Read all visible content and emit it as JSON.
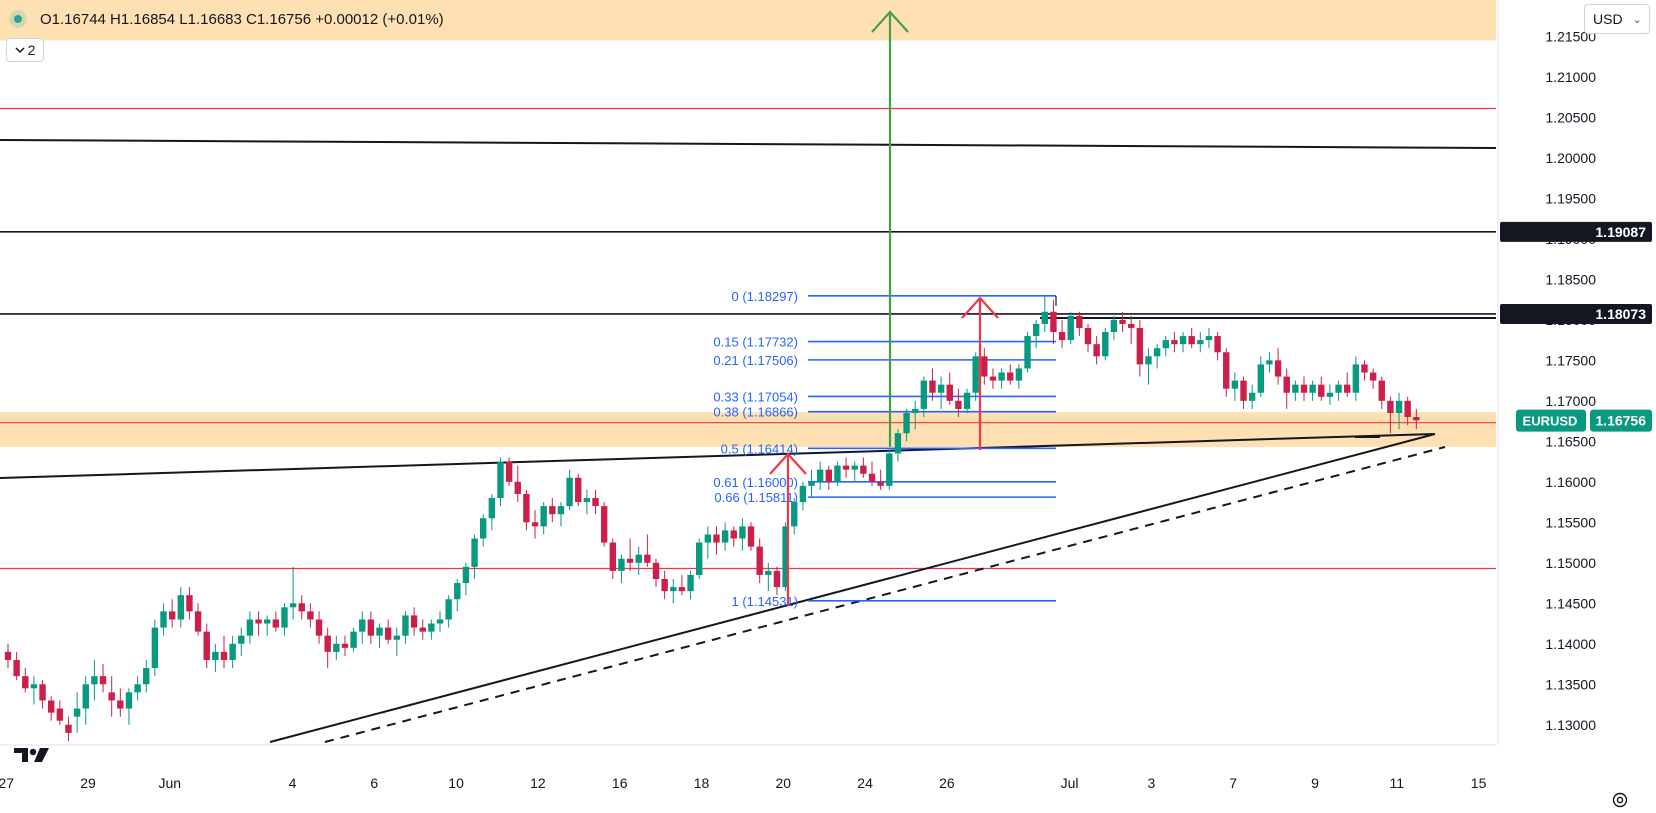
{
  "header": {
    "ohlc_text": "O1.16744 H1.16854 L1.16683 C1.16756 +0.00012 (+0.01%)",
    "collapse_label": "2",
    "currency": "USD"
  },
  "colors": {
    "up": "#089981",
    "down": "#cc1f4a",
    "fib": "#2962ff",
    "zone": "#ffe0b2",
    "green_arrow": "#43a047",
    "red": "#f23645",
    "text": "#131722"
  },
  "icons": {
    "status": "status-dot-icon",
    "collapse": "chevron-down-icon",
    "currency": "chevron-down-icon",
    "logo": "tradingview-logo-icon",
    "settings": "gear-icon"
  },
  "chart_data": {
    "type": "candlestick",
    "symbol": "EURUSD",
    "last_price": "1.16756",
    "y_range": [
      1.1275,
      1.2195
    ],
    "y_ticks": [
      "1.21500",
      "1.21000",
      "1.20500",
      "1.20000",
      "1.19500",
      "1.19000",
      "1.18500",
      "1.18000",
      "1.17500",
      "1.17000",
      "1.16500",
      "1.16000",
      "1.15500",
      "1.15000",
      "1.14500",
      "1.14000",
      "1.13500",
      "1.13000"
    ],
    "x_ticks": [
      {
        "label": "27",
        "bar": -1
      },
      {
        "label": "29",
        "bar": 1
      },
      {
        "label": "Jun",
        "bar": 3
      },
      {
        "label": "4",
        "bar": 6
      },
      {
        "label": "6",
        "bar": 8
      },
      {
        "label": "10",
        "bar": 10
      },
      {
        "label": "12",
        "bar": 12
      },
      {
        "label": "16",
        "bar": 14
      },
      {
        "label": "18",
        "bar": 16
      },
      {
        "label": "20",
        "bar": 18
      },
      {
        "label": "24",
        "bar": 20
      },
      {
        "label": "26",
        "bar": 22
      },
      {
        "label": "Jul",
        "bar": 25
      },
      {
        "label": "3",
        "bar": 27
      },
      {
        "label": "7",
        "bar": 29
      },
      {
        "label": "9",
        "bar": 31
      },
      {
        "label": "11",
        "bar": 33
      },
      {
        "label": "15",
        "bar": 35
      }
    ],
    "price_tags": [
      {
        "label": "1.19087",
        "value": 1.19087
      },
      {
        "label": "1.18073",
        "value": 1.18073
      }
    ],
    "fib_levels": [
      {
        "label": "0 (1.18297)",
        "value": 1.18297
      },
      {
        "label": "0.15 (1.17732)",
        "value": 1.17732
      },
      {
        "label": "0.21 (1.17506)",
        "value": 1.17506
      },
      {
        "label": "0.33 (1.17054)",
        "value": 1.17054
      },
      {
        "label": "0.38 (1.16866)",
        "value": 1.16866
      },
      {
        "label": "0.5 (1.16414)",
        "value": 1.16414
      },
      {
        "label": "0.61 (1.16000)",
        "value": 1.16
      },
      {
        "label": "0.66 (1.15811)",
        "value": 1.15811
      },
      {
        "label": "1 (1.14531)",
        "value": 1.14531
      }
    ],
    "horizontal_lines": [
      {
        "value": 1.2061,
        "color": "red"
      },
      {
        "value": 1.19087,
        "color": "black"
      },
      {
        "value": 1.18073,
        "color": "black"
      },
      {
        "value": 1.1493,
        "color": "red"
      },
      {
        "value": 1.1673,
        "color": "red"
      }
    ],
    "zones": [
      {
        "from": 1.2145,
        "to": 1.2195
      },
      {
        "from": 1.1643,
        "to": 1.1686
      }
    ],
    "candles": [
      [
        1.139,
        1.14,
        1.137,
        1.138
      ],
      [
        1.138,
        1.139,
        1.1355,
        1.136
      ],
      [
        1.136,
        1.137,
        1.134,
        1.1345
      ],
      [
        1.1345,
        1.136,
        1.1325,
        1.135
      ],
      [
        1.135,
        1.1355,
        1.132,
        1.133
      ],
      [
        1.133,
        1.1335,
        1.1305,
        1.1315
      ],
      [
        1.132,
        1.133,
        1.13,
        1.1305
      ],
      [
        1.13,
        1.131,
        1.128,
        1.129
      ],
      [
        1.131,
        1.134,
        1.129,
        1.132
      ],
      [
        1.132,
        1.136,
        1.13,
        1.135
      ],
      [
        1.135,
        1.138,
        1.133,
        1.136
      ],
      [
        1.136,
        1.1375,
        1.134,
        1.135
      ],
      [
        1.134,
        1.136,
        1.131,
        1.133
      ],
      [
        1.133,
        1.1345,
        1.131,
        1.132
      ],
      [
        1.132,
        1.1345,
        1.13,
        1.134
      ],
      [
        1.134,
        1.136,
        1.133,
        1.135
      ],
      [
        1.135,
        1.138,
        1.134,
        1.137
      ],
      [
        1.137,
        1.143,
        1.136,
        1.142
      ],
      [
        1.142,
        1.145,
        1.141,
        1.144
      ],
      [
        1.144,
        1.1455,
        1.142,
        1.143
      ],
      [
        1.143,
        1.147,
        1.142,
        1.146
      ],
      [
        1.146,
        1.147,
        1.143,
        1.144
      ],
      [
        1.144,
        1.145,
        1.141,
        1.1415
      ],
      [
        1.1415,
        1.1425,
        1.137,
        1.138
      ],
      [
        1.138,
        1.14,
        1.1365,
        1.139
      ],
      [
        1.139,
        1.141,
        1.137,
        1.138
      ],
      [
        1.138,
        1.141,
        1.137,
        1.14
      ],
      [
        1.14,
        1.142,
        1.1385,
        1.141
      ],
      [
        1.141,
        1.144,
        1.14,
        1.143
      ],
      [
        1.143,
        1.144,
        1.141,
        1.1425
      ],
      [
        1.1425,
        1.1435,
        1.141,
        1.143
      ],
      [
        1.143,
        1.144,
        1.1415,
        1.142
      ],
      [
        1.142,
        1.145,
        1.141,
        1.1445
      ],
      [
        1.1445,
        1.1495,
        1.143,
        1.145
      ],
      [
        1.145,
        1.146,
        1.143,
        1.144
      ],
      [
        1.144,
        1.145,
        1.142,
        1.143
      ],
      [
        1.143,
        1.144,
        1.14,
        1.141
      ],
      [
        1.141,
        1.142,
        1.137,
        1.139
      ],
      [
        1.139,
        1.141,
        1.138,
        1.14
      ],
      [
        1.14,
        1.141,
        1.1385,
        1.1395
      ],
      [
        1.1395,
        1.142,
        1.139,
        1.1415
      ],
      [
        1.1415,
        1.144,
        1.14,
        1.143
      ],
      [
        1.143,
        1.144,
        1.14,
        1.141
      ],
      [
        1.141,
        1.1425,
        1.1395,
        1.142
      ],
      [
        1.142,
        1.143,
        1.14,
        1.1405
      ],
      [
        1.1405,
        1.142,
        1.1385,
        1.141
      ],
      [
        1.141,
        1.144,
        1.14,
        1.1435
      ],
      [
        1.1435,
        1.1445,
        1.141,
        1.142
      ],
      [
        1.142,
        1.143,
        1.1405,
        1.1415
      ],
      [
        1.1415,
        1.143,
        1.1405,
        1.1425
      ],
      [
        1.1425,
        1.144,
        1.1415,
        1.143
      ],
      [
        1.143,
        1.146,
        1.142,
        1.1455
      ],
      [
        1.1455,
        1.148,
        1.144,
        1.1475
      ],
      [
        1.1475,
        1.15,
        1.146,
        1.1495
      ],
      [
        1.1495,
        1.1535,
        1.148,
        1.153
      ],
      [
        1.153,
        1.156,
        1.152,
        1.1555
      ],
      [
        1.1555,
        1.1585,
        1.154,
        1.158
      ],
      [
        1.158,
        1.163,
        1.157,
        1.1625
      ],
      [
        1.1625,
        1.163,
        1.1595,
        1.16
      ],
      [
        1.16,
        1.162,
        1.1575,
        1.1585
      ],
      [
        1.1585,
        1.159,
        1.154,
        1.155
      ],
      [
        1.155,
        1.1565,
        1.153,
        1.1545
      ],
      [
        1.1545,
        1.1575,
        1.1535,
        1.157
      ],
      [
        1.157,
        1.158,
        1.155,
        1.156
      ],
      [
        1.156,
        1.1575,
        1.1545,
        1.157
      ],
      [
        1.157,
        1.1615,
        1.1565,
        1.1605
      ],
      [
        1.1605,
        1.161,
        1.157,
        1.1575
      ],
      [
        1.1575,
        1.159,
        1.156,
        1.158
      ],
      [
        1.158,
        1.159,
        1.156,
        1.157
      ],
      [
        1.157,
        1.1575,
        1.152,
        1.1525
      ],
      [
        1.1525,
        1.153,
        1.148,
        1.149
      ],
      [
        1.149,
        1.151,
        1.1475,
        1.1505
      ],
      [
        1.1505,
        1.153,
        1.149,
        1.15
      ],
      [
        1.15,
        1.152,
        1.1485,
        1.151
      ],
      [
        1.151,
        1.1535,
        1.1495,
        1.15
      ],
      [
        1.15,
        1.1505,
        1.147,
        1.148
      ],
      [
        1.148,
        1.149,
        1.1455,
        1.1465
      ],
      [
        1.1465,
        1.148,
        1.145,
        1.147
      ],
      [
        1.147,
        1.1485,
        1.146,
        1.1465
      ],
      [
        1.1465,
        1.149,
        1.1455,
        1.1485
      ],
      [
        1.1485,
        1.153,
        1.148,
        1.1525
      ],
      [
        1.1525,
        1.1545,
        1.1505,
        1.1535
      ],
      [
        1.1535,
        1.1545,
        1.151,
        1.1525
      ],
      [
        1.1525,
        1.155,
        1.1515,
        1.154
      ],
      [
        1.154,
        1.1545,
        1.152,
        1.153
      ],
      [
        1.153,
        1.1555,
        1.1515,
        1.1545
      ],
      [
        1.1545,
        1.155,
        1.1515,
        1.152
      ],
      [
        1.152,
        1.153,
        1.1475,
        1.1485
      ],
      [
        1.1485,
        1.15,
        1.1465,
        1.149
      ],
      [
        1.149,
        1.1495,
        1.146,
        1.147
      ],
      [
        1.147,
        1.155,
        1.1465,
        1.1545
      ],
      [
        1.1545,
        1.158,
        1.1535,
        1.1575
      ],
      [
        1.1575,
        1.16,
        1.1565,
        1.1595
      ],
      [
        1.1595,
        1.1615,
        1.158,
        1.16
      ],
      [
        1.16,
        1.1625,
        1.159,
        1.1615
      ],
      [
        1.1615,
        1.162,
        1.159,
        1.16
      ],
      [
        1.16,
        1.1625,
        1.1595,
        1.162
      ],
      [
        1.162,
        1.163,
        1.1605,
        1.1615
      ],
      [
        1.1615,
        1.1625,
        1.16,
        1.162
      ],
      [
        1.162,
        1.163,
        1.1605,
        1.161
      ],
      [
        1.161,
        1.1625,
        1.1595,
        1.16
      ],
      [
        1.16,
        1.1615,
        1.159,
        1.1595
      ],
      [
        1.1595,
        1.164,
        1.159,
        1.1635
      ],
      [
        1.1635,
        1.1665,
        1.1625,
        1.166
      ],
      [
        1.166,
        1.169,
        1.165,
        1.1685
      ],
      [
        1.1685,
        1.17,
        1.1665,
        1.169
      ],
      [
        1.169,
        1.173,
        1.168,
        1.1725
      ],
      [
        1.1725,
        1.174,
        1.17,
        1.171
      ],
      [
        1.171,
        1.173,
        1.169,
        1.172
      ],
      [
        1.172,
        1.1735,
        1.1695,
        1.17
      ],
      [
        1.17,
        1.1715,
        1.168,
        1.169
      ],
      [
        1.169,
        1.1715,
        1.1685,
        1.171
      ],
      [
        1.171,
        1.176,
        1.17,
        1.1755
      ],
      [
        1.1755,
        1.1765,
        1.172,
        1.173
      ],
      [
        1.173,
        1.174,
        1.1715,
        1.1725
      ],
      [
        1.1725,
        1.174,
        1.1715,
        1.1735
      ],
      [
        1.1735,
        1.1745,
        1.172,
        1.1725
      ],
      [
        1.1725,
        1.1745,
        1.1715,
        1.174
      ],
      [
        1.174,
        1.1785,
        1.1735,
        1.178
      ],
      [
        1.178,
        1.18,
        1.1765,
        1.1795
      ],
      [
        1.1795,
        1.183,
        1.1785,
        1.181
      ],
      [
        1.181,
        1.1825,
        1.177,
        1.1785
      ],
      [
        1.1785,
        1.18,
        1.1765,
        1.1775
      ],
      [
        1.1775,
        1.181,
        1.177,
        1.1805
      ],
      [
        1.1805,
        1.181,
        1.178,
        1.179
      ],
      [
        1.179,
        1.1795,
        1.176,
        1.177
      ],
      [
        1.177,
        1.178,
        1.1745,
        1.1755
      ],
      [
        1.1755,
        1.179,
        1.175,
        1.1785
      ],
      [
        1.1785,
        1.1805,
        1.1775,
        1.18
      ],
      [
        1.18,
        1.181,
        1.1785,
        1.1795
      ],
      [
        1.1795,
        1.1805,
        1.177,
        1.179
      ],
      [
        1.179,
        1.18,
        1.173,
        1.1745
      ],
      [
        1.1745,
        1.1765,
        1.172,
        1.1755
      ],
      [
        1.1755,
        1.177,
        1.174,
        1.1765
      ],
      [
        1.1765,
        1.178,
        1.1755,
        1.1775
      ],
      [
        1.1775,
        1.1785,
        1.176,
        1.177
      ],
      [
        1.177,
        1.1785,
        1.176,
        1.178
      ],
      [
        1.178,
        1.179,
        1.1765,
        1.177
      ],
      [
        1.177,
        1.1785,
        1.176,
        1.1775
      ],
      [
        1.1775,
        1.179,
        1.1765,
        1.178
      ],
      [
        1.178,
        1.1785,
        1.175,
        1.176
      ],
      [
        1.176,
        1.1765,
        1.1705,
        1.1715
      ],
      [
        1.1715,
        1.1735,
        1.17,
        1.1725
      ],
      [
        1.1725,
        1.173,
        1.169,
        1.17
      ],
      [
        1.17,
        1.172,
        1.169,
        1.171
      ],
      [
        1.171,
        1.1755,
        1.1705,
        1.1745
      ],
      [
        1.1745,
        1.176,
        1.1735,
        1.175
      ],
      [
        1.175,
        1.1765,
        1.172,
        1.173
      ],
      [
        1.173,
        1.174,
        1.169,
        1.171
      ],
      [
        1.171,
        1.1725,
        1.17,
        1.172
      ],
      [
        1.172,
        1.173,
        1.17,
        1.171
      ],
      [
        1.171,
        1.1725,
        1.17,
        1.172
      ],
      [
        1.172,
        1.173,
        1.17,
        1.1705
      ],
      [
        1.1705,
        1.172,
        1.1695,
        1.171
      ],
      [
        1.171,
        1.1725,
        1.17,
        1.172
      ],
      [
        1.172,
        1.1735,
        1.1705,
        1.171
      ],
      [
        1.171,
        1.1755,
        1.17,
        1.1745
      ],
      [
        1.1745,
        1.175,
        1.1725,
        1.1735
      ],
      [
        1.1735,
        1.174,
        1.1715,
        1.1725
      ],
      [
        1.1725,
        1.173,
        1.169,
        1.17
      ],
      [
        1.17,
        1.1705,
        1.166,
        1.1685
      ],
      [
        1.1685,
        1.171,
        1.1665,
        1.17
      ],
      [
        1.17,
        1.1705,
        1.167,
        1.168
      ],
      [
        1.168,
        1.169,
        1.1665,
        1.1676
      ]
    ]
  }
}
